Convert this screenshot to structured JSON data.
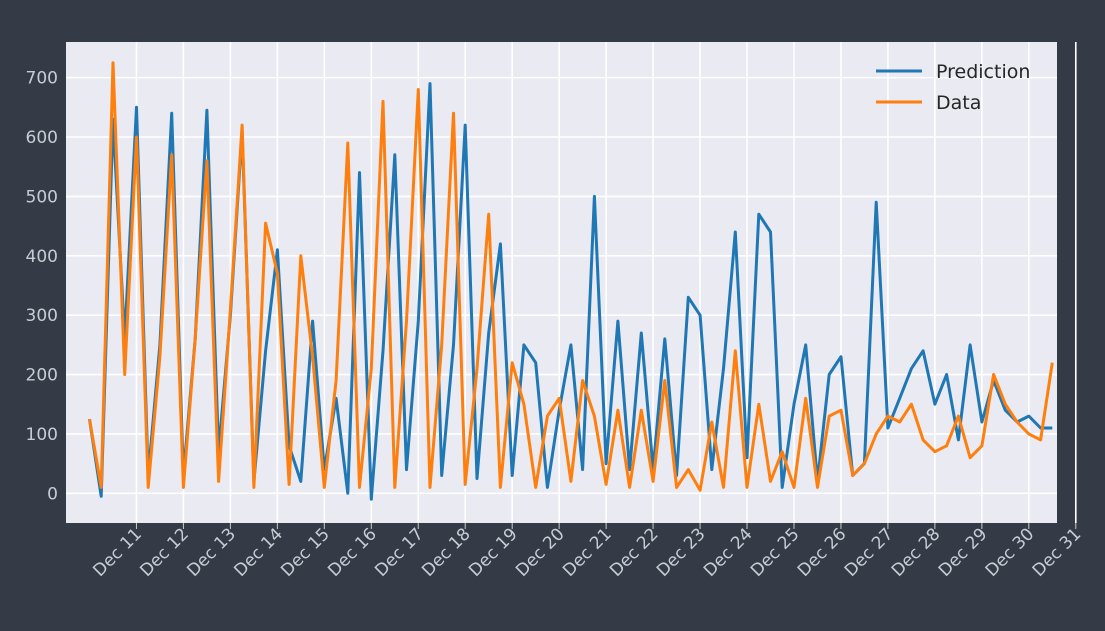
{
  "colors": {
    "page_background": "#343a46",
    "plot_background": "#eaeaf2",
    "grid": "#ffffff",
    "tick_text": "#c8ccd4"
  },
  "chart_data": {
    "type": "line",
    "title": "",
    "xlabel": "",
    "ylabel": "",
    "grid": true,
    "legend": "top-right",
    "x_unit": "day of December (hourly samples, 0.25 spacing shown)",
    "xlim": [
      8.5,
      29.6
    ],
    "ylim": [
      -50,
      760
    ],
    "y_ticks": [
      0,
      100,
      200,
      300,
      400,
      500,
      600,
      700
    ],
    "x_ticks": [
      {
        "value": 10,
        "label": "Dec 11"
      },
      {
        "value": 11,
        "label": "Dec 12"
      },
      {
        "value": 12,
        "label": "Dec 13"
      },
      {
        "value": 13,
        "label": "Dec 14"
      },
      {
        "value": 14,
        "label": "Dec 15"
      },
      {
        "value": 15,
        "label": "Dec 16"
      },
      {
        "value": 16,
        "label": "Dec 17"
      },
      {
        "value": 17,
        "label": "Dec 18"
      },
      {
        "value": 18,
        "label": "Dec 19"
      },
      {
        "value": 19,
        "label": "Dec 20"
      },
      {
        "value": 20,
        "label": "Dec 21"
      },
      {
        "value": 21,
        "label": "Dec 22"
      },
      {
        "value": 22,
        "label": "Dec 23"
      },
      {
        "value": 23,
        "label": "Dec 24"
      },
      {
        "value": 24,
        "label": "Dec 25"
      },
      {
        "value": 25,
        "label": "Dec 26"
      },
      {
        "value": 26,
        "label": "Dec 27"
      },
      {
        "value": 27,
        "label": "Dec 28"
      },
      {
        "value": 28,
        "label": "Dec 29"
      },
      {
        "value": 29,
        "label": "Dec 30"
      },
      {
        "value": 30,
        "label": "Dec 31"
      }
    ],
    "series": [
      {
        "name": "Prediction",
        "color": "#1f77b4",
        "x": [
          9.0,
          9.25,
          9.5,
          9.75,
          10.0,
          10.25,
          10.5,
          10.75,
          11.0,
          11.25,
          11.5,
          11.75,
          12.0,
          12.25,
          12.5,
          12.75,
          13.0,
          13.25,
          13.5,
          13.75,
          14.0,
          14.25,
          14.5,
          14.75,
          15.0,
          15.25,
          15.5,
          15.75,
          16.0,
          16.25,
          16.5,
          16.75,
          17.0,
          17.25,
          17.5,
          17.75,
          18.0,
          18.25,
          18.5,
          18.75,
          19.0,
          19.25,
          19.5,
          19.75,
          20.0,
          20.25,
          20.5,
          20.75,
          21.0,
          21.25,
          21.5,
          21.75,
          22.0,
          22.25,
          22.5,
          22.75,
          23.0,
          23.25,
          23.5,
          23.75,
          24.0,
          24.25,
          24.5,
          24.75,
          25.0,
          25.25,
          25.5,
          25.75,
          26.0,
          26.25,
          26.5,
          26.75,
          27.0,
          27.25,
          27.5,
          27.75,
          28.0,
          28.25,
          28.5,
          28.75,
          29.0,
          29.25,
          29.5
        ],
        "values": [
          125,
          -5,
          630,
          260,
          650,
          30,
          250,
          640,
          30,
          260,
          645,
          70,
          300,
          610,
          20,
          240,
          410,
          80,
          20,
          290,
          40,
          160,
          0,
          540,
          -10,
          240,
          570,
          40,
          290,
          690,
          30,
          250,
          620,
          25,
          270,
          420,
          30,
          250,
          220,
          10,
          140,
          250,
          40,
          500,
          50,
          290,
          40,
          270,
          40,
          260,
          30,
          330,
          300,
          40,
          210,
          440,
          60,
          470,
          440,
          10,
          150,
          250,
          20,
          200,
          230,
          30,
          50,
          490,
          110,
          160,
          210,
          240,
          150,
          200,
          90,
          250,
          120,
          190,
          140,
          120,
          130,
          110,
          110
        ]
      },
      {
        "name": "Data",
        "color": "#ff7f0e",
        "x": [
          9.0,
          9.25,
          9.5,
          9.75,
          10.0,
          10.25,
          10.5,
          10.75,
          11.0,
          11.25,
          11.5,
          11.75,
          12.0,
          12.25,
          12.5,
          12.75,
          13.0,
          13.25,
          13.5,
          13.75,
          14.0,
          14.25,
          14.5,
          14.75,
          15.0,
          15.25,
          15.5,
          15.75,
          16.0,
          16.25,
          16.5,
          16.75,
          17.0,
          17.25,
          17.5,
          17.75,
          18.0,
          18.25,
          18.5,
          18.75,
          19.0,
          19.25,
          19.5,
          19.75,
          20.0,
          20.25,
          20.5,
          20.75,
          21.0,
          21.25,
          21.5,
          21.75,
          22.0,
          22.25,
          22.5,
          22.75,
          23.0,
          23.25,
          23.5,
          23.75,
          24.0,
          24.25,
          24.5,
          24.75,
          25.0,
          25.25,
          25.5,
          25.75,
          26.0,
          26.25,
          26.5,
          26.75,
          27.0,
          27.25,
          27.5,
          27.75,
          28.0,
          28.25,
          28.5,
          28.75,
          29.0,
          29.25,
          29.5
        ],
        "values": [
          125,
          10,
          725,
          200,
          600,
          10,
          230,
          570,
          10,
          260,
          560,
          20,
          310,
          620,
          10,
          455,
          370,
          15,
          400,
          230,
          10,
          190,
          590,
          10,
          210,
          660,
          10,
          290,
          680,
          10,
          250,
          640,
          15,
          210,
          470,
          10,
          220,
          150,
          10,
          130,
          160,
          20,
          190,
          130,
          15,
          140,
          10,
          140,
          20,
          190,
          10,
          40,
          5,
          120,
          10,
          240,
          10,
          150,
          20,
          70,
          10,
          160,
          10,
          130,
          140,
          30,
          50,
          100,
          130,
          120,
          150,
          90,
          70,
          80,
          130,
          60,
          80,
          200,
          150,
          120,
          100,
          90,
          220
        ]
      }
    ]
  }
}
